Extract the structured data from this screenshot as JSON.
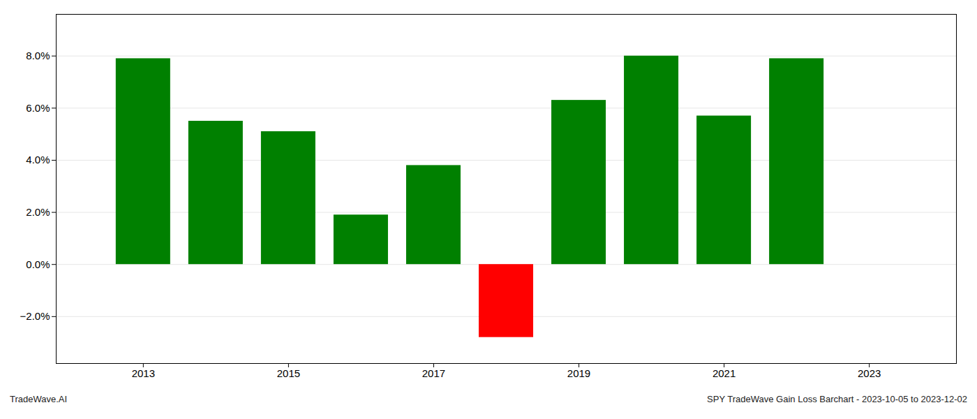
{
  "chart_data": {
    "type": "bar",
    "x": [
      2013,
      2014,
      2015,
      2016,
      2017,
      2018,
      2019,
      2020,
      2021,
      2022
    ],
    "values": [
      0.079,
      0.055,
      0.051,
      0.019,
      0.038,
      -0.028,
      0.063,
      0.08,
      0.057,
      0.079
    ],
    "colors": [
      "#008000",
      "#008000",
      "#008000",
      "#008000",
      "#008000",
      "#ff0000",
      "#008000",
      "#008000",
      "#008000",
      "#008000"
    ],
    "xlim": [
      2011.8,
      2024.2
    ],
    "xticks": [
      2013,
      2015,
      2017,
      2019,
      2021,
      2023
    ],
    "ylim": [
      -0.038,
      0.096
    ],
    "yticks": [
      {
        "value": -0.02,
        "label": "−2.0%"
      },
      {
        "value": 0.0,
        "label": "0.0%"
      },
      {
        "value": 0.02,
        "label": "2.0%"
      },
      {
        "value": 0.04,
        "label": "4.0%"
      },
      {
        "value": 0.06,
        "label": "6.0%"
      },
      {
        "value": 0.08,
        "label": "8.0%"
      }
    ],
    "grid": "y",
    "annotations": [
      "TradeWave.AI",
      "SPY TradeWave Gain Loss Barchart - 2023-10-05 to 2023-12-02"
    ]
  }
}
